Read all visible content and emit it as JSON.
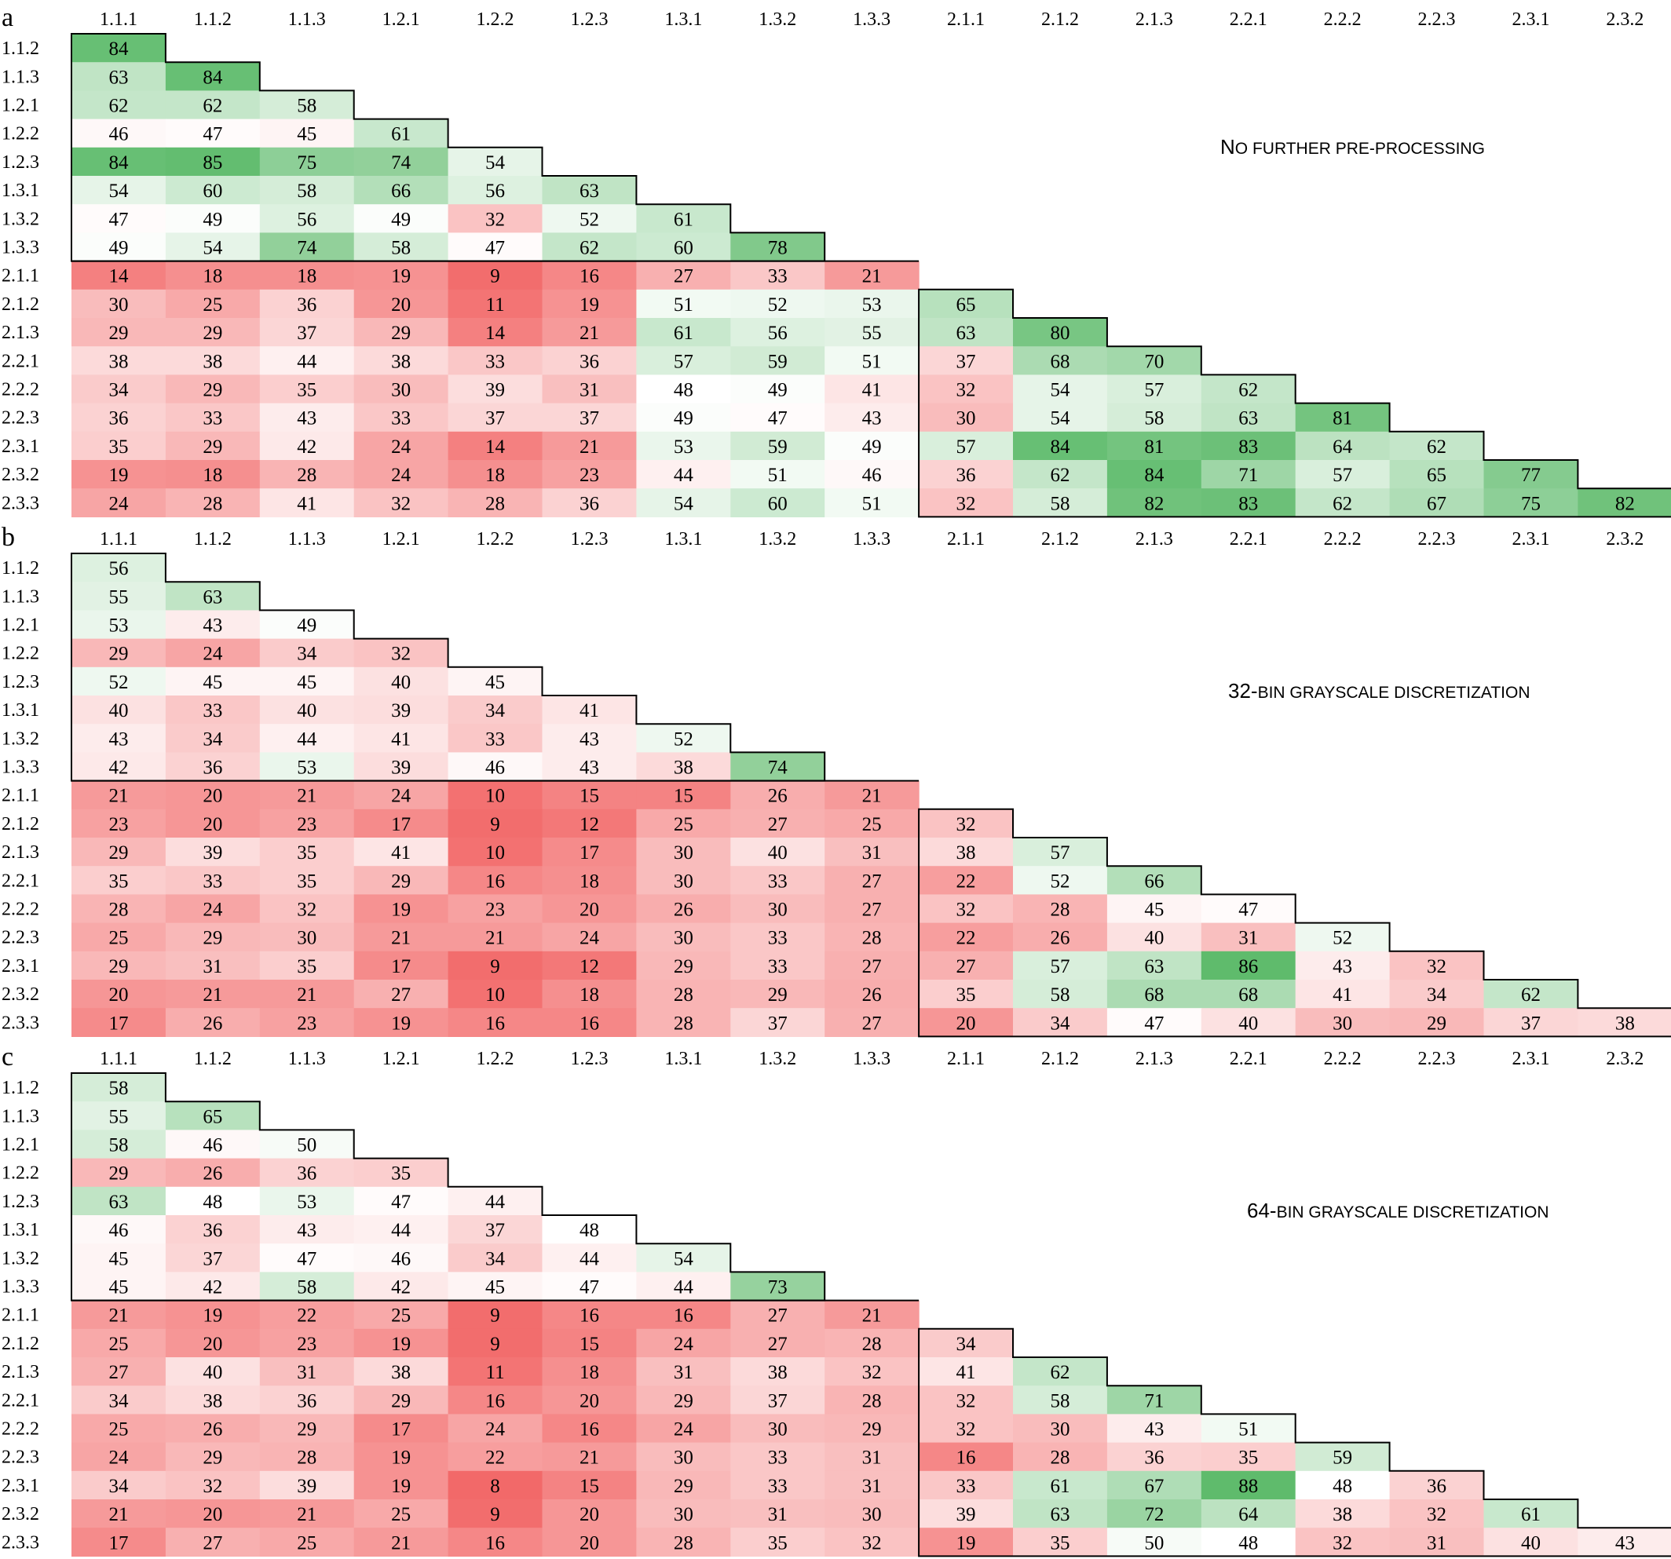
{
  "chart_data": [
    {
      "type": "heatmap",
      "panel_label": "a",
      "annotation": {
        "lead": "N",
        "rest": "O FURTHER PRE-PROCESSING"
      },
      "columns": [
        "1.1.1",
        "1.1.2",
        "1.1.3",
        "1.2.1",
        "1.2.2",
        "1.2.3",
        "1.3.1",
        "1.3.2",
        "1.3.3",
        "2.1.1",
        "2.1.2",
        "2.1.3",
        "2.2.1",
        "2.2.2",
        "2.2.3",
        "2.3.1",
        "2.3.2"
      ],
      "rows": [
        "1.1.2",
        "1.1.3",
        "1.2.1",
        "1.2.2",
        "1.2.3",
        "1.3.1",
        "1.3.2",
        "1.3.3",
        "2.1.1",
        "2.1.2",
        "2.1.3",
        "2.2.1",
        "2.2.2",
        "2.2.3",
        "2.3.1",
        "2.3.2",
        "2.3.3"
      ],
      "values": [
        [
          84
        ],
        [
          63,
          84
        ],
        [
          62,
          62,
          58
        ],
        [
          46,
          47,
          45,
          61
        ],
        [
          84,
          85,
          75,
          74,
          54
        ],
        [
          54,
          60,
          58,
          66,
          56,
          63
        ],
        [
          47,
          49,
          56,
          49,
          32,
          52,
          61
        ],
        [
          49,
          54,
          74,
          58,
          47,
          62,
          60,
          78
        ],
        [
          14,
          18,
          18,
          19,
          9,
          16,
          27,
          33,
          21
        ],
        [
          30,
          25,
          36,
          20,
          11,
          19,
          51,
          52,
          53,
          65
        ],
        [
          29,
          29,
          37,
          29,
          14,
          21,
          61,
          56,
          55,
          63,
          80
        ],
        [
          38,
          38,
          44,
          38,
          33,
          36,
          57,
          59,
          51,
          37,
          68,
          70
        ],
        [
          34,
          29,
          35,
          30,
          39,
          31,
          48,
          49,
          41,
          32,
          54,
          57,
          62
        ],
        [
          36,
          33,
          43,
          33,
          37,
          37,
          49,
          47,
          43,
          30,
          54,
          58,
          63,
          81
        ],
        [
          35,
          29,
          42,
          24,
          14,
          21,
          53,
          59,
          49,
          57,
          84,
          81,
          83,
          64,
          62
        ],
        [
          19,
          18,
          28,
          24,
          18,
          23,
          44,
          51,
          46,
          36,
          62,
          84,
          71,
          57,
          65,
          77
        ],
        [
          24,
          28,
          41,
          32,
          28,
          36,
          54,
          60,
          51,
          32,
          58,
          82,
          83,
          62,
          67,
          75,
          82
        ]
      ]
    },
    {
      "type": "heatmap",
      "panel_label": "b",
      "annotation": {
        "lead": "32-",
        "rest": "BIN GRAYSCALE DISCRETIZATION"
      },
      "columns": [
        "1.1.1",
        "1.1.2",
        "1.1.3",
        "1.2.1",
        "1.2.2",
        "1.2.3",
        "1.3.1",
        "1.3.2",
        "1.3.3",
        "2.1.1",
        "2.1.2",
        "2.1.3",
        "2.2.1",
        "2.2.2",
        "2.2.3",
        "2.3.1",
        "2.3.2"
      ],
      "rows": [
        "1.1.2",
        "1.1.3",
        "1.2.1",
        "1.2.2",
        "1.2.3",
        "1.3.1",
        "1.3.2",
        "1.3.3",
        "2.1.1",
        "2.1.2",
        "2.1.3",
        "2.2.1",
        "2.2.2",
        "2.2.3",
        "2.3.1",
        "2.3.2",
        "2.3.3"
      ],
      "values": [
        [
          56
        ],
        [
          55,
          63
        ],
        [
          53,
          43,
          49
        ],
        [
          29,
          24,
          34,
          32
        ],
        [
          52,
          45,
          45,
          40,
          45
        ],
        [
          40,
          33,
          40,
          39,
          34,
          41
        ],
        [
          43,
          34,
          44,
          41,
          33,
          43,
          52
        ],
        [
          42,
          36,
          53,
          39,
          46,
          43,
          38,
          74
        ],
        [
          21,
          20,
          21,
          24,
          10,
          15,
          15,
          26,
          21
        ],
        [
          23,
          20,
          23,
          17,
          9,
          12,
          25,
          27,
          25,
          32
        ],
        [
          29,
          39,
          35,
          41,
          10,
          17,
          30,
          40,
          31,
          38,
          57
        ],
        [
          35,
          33,
          35,
          29,
          16,
          18,
          30,
          33,
          27,
          22,
          52,
          66
        ],
        [
          28,
          24,
          32,
          19,
          23,
          20,
          26,
          30,
          27,
          32,
          28,
          45,
          47
        ],
        [
          25,
          29,
          30,
          21,
          21,
          24,
          30,
          33,
          28,
          22,
          26,
          40,
          31,
          52
        ],
        [
          29,
          31,
          35,
          17,
          9,
          12,
          29,
          33,
          27,
          27,
          57,
          63,
          86,
          43,
          32
        ],
        [
          20,
          21,
          21,
          27,
          10,
          18,
          28,
          29,
          26,
          35,
          58,
          68,
          68,
          41,
          34,
          62
        ],
        [
          17,
          26,
          23,
          19,
          16,
          16,
          28,
          37,
          27,
          20,
          34,
          47,
          40,
          30,
          29,
          37,
          38
        ]
      ]
    },
    {
      "type": "heatmap",
      "panel_label": "c",
      "annotation": {
        "lead": "64-",
        "rest": "BIN GRAYSCALE DISCRETIZATION"
      },
      "columns": [
        "1.1.1",
        "1.1.2",
        "1.1.3",
        "1.2.1",
        "1.2.2",
        "1.2.3",
        "1.3.1",
        "1.3.2",
        "1.3.3",
        "2.1.1",
        "2.1.2",
        "2.1.3",
        "2.2.1",
        "2.2.2",
        "2.2.3",
        "2.3.1",
        "2.3.2"
      ],
      "rows": [
        "1.1.2",
        "1.1.3",
        "1.2.1",
        "1.2.2",
        "1.2.3",
        "1.3.1",
        "1.3.2",
        "1.3.3",
        "2.1.1",
        "2.1.2",
        "2.1.3",
        "2.2.1",
        "2.2.2",
        "2.2.3",
        "2.3.1",
        "2.3.2",
        "2.3.3"
      ],
      "values": [
        [
          58
        ],
        [
          55,
          65
        ],
        [
          58,
          46,
          50
        ],
        [
          29,
          26,
          36,
          35
        ],
        [
          63,
          48,
          53,
          47,
          44
        ],
        [
          46,
          36,
          43,
          44,
          37,
          48
        ],
        [
          45,
          37,
          47,
          46,
          34,
          44,
          54
        ],
        [
          45,
          42,
          58,
          42,
          45,
          47,
          44,
          73
        ],
        [
          21,
          19,
          22,
          25,
          9,
          16,
          16,
          27,
          21
        ],
        [
          25,
          20,
          23,
          19,
          9,
          15,
          24,
          27,
          28,
          34
        ],
        [
          27,
          40,
          31,
          38,
          11,
          18,
          31,
          38,
          32,
          41,
          62
        ],
        [
          34,
          38,
          36,
          29,
          16,
          20,
          29,
          37,
          28,
          32,
          58,
          71
        ],
        [
          25,
          26,
          29,
          17,
          24,
          16,
          24,
          30,
          29,
          32,
          30,
          43,
          51
        ],
        [
          24,
          29,
          28,
          19,
          22,
          21,
          30,
          33,
          31,
          16,
          28,
          36,
          35,
          59
        ],
        [
          34,
          32,
          39,
          19,
          8,
          15,
          29,
          33,
          31,
          33,
          61,
          67,
          88,
          48,
          36
        ],
        [
          21,
          20,
          21,
          25,
          9,
          20,
          30,
          31,
          30,
          39,
          63,
          72,
          64,
          38,
          32,
          61
        ],
        [
          17,
          27,
          25,
          21,
          16,
          20,
          28,
          35,
          32,
          19,
          35,
          50,
          48,
          32,
          31,
          40,
          43
        ]
      ]
    }
  ]
}
